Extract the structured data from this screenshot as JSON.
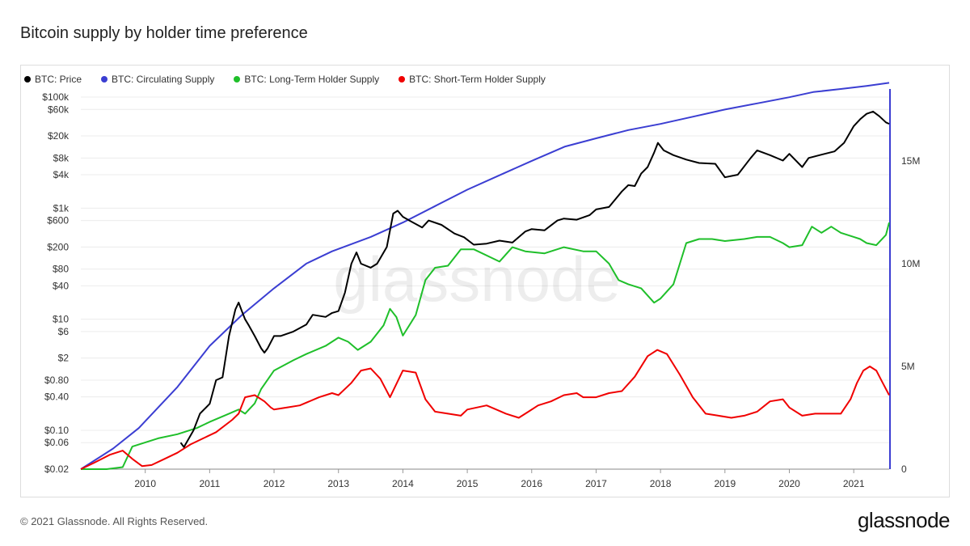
{
  "title": "Bitcoin supply by holder time preference",
  "footer": {
    "copyright": "© 2021 Glassnode. All Rights Reserved.",
    "brand": "glassnode"
  },
  "watermark": "glassnode",
  "colors": {
    "price": "#000000",
    "circulating": "#3b3ed2",
    "lth": "#1fbf2a",
    "sth": "#f00000",
    "grid": "#ececec"
  },
  "chart_data": {
    "type": "line",
    "x_axis": {
      "ticks": [
        "2010",
        "2011",
        "2012",
        "2013",
        "2014",
        "2015",
        "2016",
        "2017",
        "2018",
        "2019",
        "2020",
        "2021"
      ],
      "range": [
        2009.0,
        2021.55
      ]
    },
    "y_left": {
      "scale": "log",
      "range": [
        0.02,
        140000
      ],
      "ticks": [
        {
          "v": 100000,
          "label": "$100k"
        },
        {
          "v": 60000,
          "label": "$60k"
        },
        {
          "v": 20000,
          "label": "$20k"
        },
        {
          "v": 8000,
          "label": "$8k"
        },
        {
          "v": 4000,
          "label": "$4k"
        },
        {
          "v": 1000,
          "label": "$1k"
        },
        {
          "v": 600,
          "label": "$600"
        },
        {
          "v": 200,
          "label": "$200"
        },
        {
          "v": 80,
          "label": "$80"
        },
        {
          "v": 40,
          "label": "$40"
        },
        {
          "v": 10,
          "label": "$10"
        },
        {
          "v": 6,
          "label": "$6"
        },
        {
          "v": 2,
          "label": "$2"
        },
        {
          "v": 0.8,
          "label": "$0.80"
        },
        {
          "v": 0.4,
          "label": "$0.40"
        },
        {
          "v": 0.1,
          "label": "$0.10"
        },
        {
          "v": 0.06,
          "label": "$0.06"
        },
        {
          "v": 0.02,
          "label": "$0.02"
        }
      ]
    },
    "y_right": {
      "scale": "linear",
      "range": [
        0,
        18500000
      ],
      "ticks": [
        {
          "v": 0,
          "label": "0"
        },
        {
          "v": 5000000,
          "label": "5M"
        },
        {
          "v": 10000000,
          "label": "10M"
        },
        {
          "v": 15000000,
          "label": "15M"
        }
      ]
    },
    "series": [
      {
        "name": "BTC: Price",
        "axis": "left",
        "color": "#000000",
        "x": [
          2010.55,
          2010.6,
          2010.75,
          2010.85,
          2011.0,
          2011.1,
          2011.2,
          2011.3,
          2011.4,
          2011.45,
          2011.5,
          2011.55,
          2011.6,
          2011.7,
          2011.8,
          2011.85,
          2011.9,
          2012.0,
          2012.1,
          2012.3,
          2012.5,
          2012.6,
          2012.8,
          2012.9,
          2013.0,
          2013.1,
          2013.2,
          2013.28,
          2013.35,
          2013.5,
          2013.6,
          2013.75,
          2013.85,
          2013.92,
          2014.0,
          2014.1,
          2014.3,
          2014.4,
          2014.6,
          2014.8,
          2014.95,
          2015.1,
          2015.3,
          2015.5,
          2015.7,
          2015.9,
          2016.0,
          2016.2,
          2016.4,
          2016.5,
          2016.7,
          2016.9,
          2017.0,
          2017.2,
          2017.4,
          2017.5,
          2017.6,
          2017.7,
          2017.8,
          2017.9,
          2017.96,
          2018.05,
          2018.2,
          2018.4,
          2018.6,
          2018.85,
          2019.0,
          2019.2,
          2019.4,
          2019.5,
          2019.7,
          2019.9,
          2020.0,
          2020.2,
          2020.3,
          2020.5,
          2020.7,
          2020.85,
          2021.0,
          2021.1,
          2021.2,
          2021.3,
          2021.4,
          2021.5,
          2021.55
        ],
        "values": [
          0.06,
          0.05,
          0.1,
          0.2,
          0.3,
          0.8,
          0.9,
          5,
          15,
          20,
          14,
          10,
          8,
          5,
          3,
          2.5,
          3,
          5,
          5,
          6,
          8,
          12,
          11,
          13,
          14,
          30,
          100,
          160,
          100,
          85,
          100,
          200,
          800,
          900,
          700,
          600,
          450,
          600,
          500,
          350,
          300,
          220,
          230,
          260,
          240,
          380,
          420,
          400,
          600,
          650,
          620,
          750,
          950,
          1050,
          2000,
          2600,
          2500,
          4200,
          5500,
          10000,
          15000,
          11000,
          9000,
          7500,
          6500,
          6300,
          3600,
          4000,
          8000,
          11000,
          9000,
          7200,
          9500,
          5500,
          8000,
          9200,
          10500,
          15000,
          30000,
          40000,
          50000,
          55000,
          45000,
          35000,
          33000
        ],
        "_": 0
      },
      {
        "name": "BTC: Circulating Supply",
        "axis": "right",
        "color": "#3b3ed2",
        "x": [
          2009.0,
          2009.5,
          2009.9,
          2010.5,
          2011.0,
          2011.5,
          2012.0,
          2012.5,
          2012.9,
          2013.5,
          2014.0,
          2014.5,
          2015.0,
          2015.5,
          2016.0,
          2016.52,
          2017.0,
          2017.5,
          2018.0,
          2018.5,
          2019.0,
          2019.5,
          2020.0,
          2020.37,
          2020.8,
          2021.2,
          2021.55
        ],
        "values": [
          0,
          1000000,
          2000000,
          4000000,
          6000000,
          7500000,
          8800000,
          10000000,
          10600000,
          11300000,
          12000000,
          12800000,
          13600000,
          14300000,
          15000000,
          15700000,
          16100000,
          16500000,
          16800000,
          17150000,
          17500000,
          17800000,
          18100000,
          18350000,
          18500000,
          18650000,
          18800000
        ]
      },
      {
        "name": "BTC: Long-Term Holder Supply",
        "axis": "right",
        "color": "#1fbf2a",
        "x": [
          2009.0,
          2009.4,
          2009.65,
          2009.8,
          2010.2,
          2010.5,
          2010.8,
          2011.0,
          2011.3,
          2011.45,
          2011.55,
          2011.7,
          2011.8,
          2012.0,
          2012.3,
          2012.5,
          2012.8,
          2013.0,
          2013.15,
          2013.3,
          2013.5,
          2013.7,
          2013.8,
          2013.9,
          2014.0,
          2014.2,
          2014.35,
          2014.5,
          2014.7,
          2014.9,
          2015.1,
          2015.5,
          2015.7,
          2015.9,
          2016.2,
          2016.5,
          2016.8,
          2017.0,
          2017.2,
          2017.35,
          2017.5,
          2017.7,
          2017.9,
          2018.0,
          2018.2,
          2018.4,
          2018.6,
          2018.8,
          2019.0,
          2019.3,
          2019.5,
          2019.7,
          2019.9,
          2020.0,
          2020.2,
          2020.35,
          2020.5,
          2020.65,
          2020.8,
          2021.0,
          2021.1,
          2021.2,
          2021.35,
          2021.5,
          2021.55
        ],
        "values": [
          0,
          0,
          100000,
          1100000,
          1500000,
          1700000,
          2000000,
          2300000,
          2700000,
          2900000,
          2700000,
          3200000,
          3900000,
          4800000,
          5300000,
          5600000,
          6000000,
          6400000,
          6200000,
          5800000,
          6200000,
          7000000,
          7800000,
          7400000,
          6500000,
          7500000,
          9200000,
          9800000,
          9900000,
          10700000,
          10700000,
          10100000,
          10800000,
          10600000,
          10500000,
          10800000,
          10600000,
          10600000,
          10000000,
          9200000,
          9000000,
          8800000,
          8100000,
          8300000,
          9000000,
          11000000,
          11200000,
          11200000,
          11100000,
          11200000,
          11300000,
          11300000,
          11000000,
          10800000,
          10900000,
          11800000,
          11500000,
          11800000,
          11500000,
          11300000,
          11200000,
          11000000,
          10900000,
          11400000,
          12000000
        ]
      },
      {
        "name": "BTC: Short-Term Holder Supply",
        "axis": "right",
        "color": "#f00000",
        "x": [
          2009.0,
          2009.2,
          2009.45,
          2009.65,
          2009.8,
          2009.95,
          2010.1,
          2010.3,
          2010.5,
          2010.7,
          2010.9,
          2011.1,
          2011.35,
          2011.45,
          2011.55,
          2011.7,
          2011.85,
          2011.95,
          2012.0,
          2012.2,
          2012.4,
          2012.7,
          2012.9,
          2013.0,
          2013.2,
          2013.35,
          2013.5,
          2013.65,
          2013.8,
          2014.0,
          2014.2,
          2014.35,
          2014.5,
          2014.7,
          2014.9,
          2015.0,
          2015.3,
          2015.6,
          2015.8,
          2015.95,
          2016.1,
          2016.3,
          2016.5,
          2016.7,
          2016.8,
          2017.0,
          2017.2,
          2017.4,
          2017.6,
          2017.8,
          2017.95,
          2018.1,
          2018.3,
          2018.5,
          2018.7,
          2018.9,
          2019.1,
          2019.3,
          2019.5,
          2019.7,
          2019.9,
          2020.0,
          2020.2,
          2020.4,
          2020.6,
          2020.8,
          2020.95,
          2021.05,
          2021.15,
          2021.25,
          2021.35,
          2021.45,
          2021.55
        ],
        "values": [
          0,
          300000,
          700000,
          900000,
          500000,
          150000,
          200000,
          500000,
          800000,
          1200000,
          1500000,
          1800000,
          2400000,
          2700000,
          3500000,
          3600000,
          3300000,
          3000000,
          2900000,
          3000000,
          3100000,
          3500000,
          3700000,
          3600000,
          4200000,
          4800000,
          4900000,
          4400000,
          3500000,
          4800000,
          4700000,
          3400000,
          2800000,
          2700000,
          2600000,
          2900000,
          3100000,
          2700000,
          2500000,
          2800000,
          3100000,
          3300000,
          3600000,
          3700000,
          3500000,
          3500000,
          3700000,
          3800000,
          4500000,
          5500000,
          5800000,
          5600000,
          4600000,
          3500000,
          2700000,
          2600000,
          2500000,
          2600000,
          2800000,
          3300000,
          3400000,
          3000000,
          2600000,
          2700000,
          2700000,
          2700000,
          3400000,
          4200000,
          4800000,
          5000000,
          4800000,
          4200000,
          3600000
        ]
      }
    ]
  }
}
